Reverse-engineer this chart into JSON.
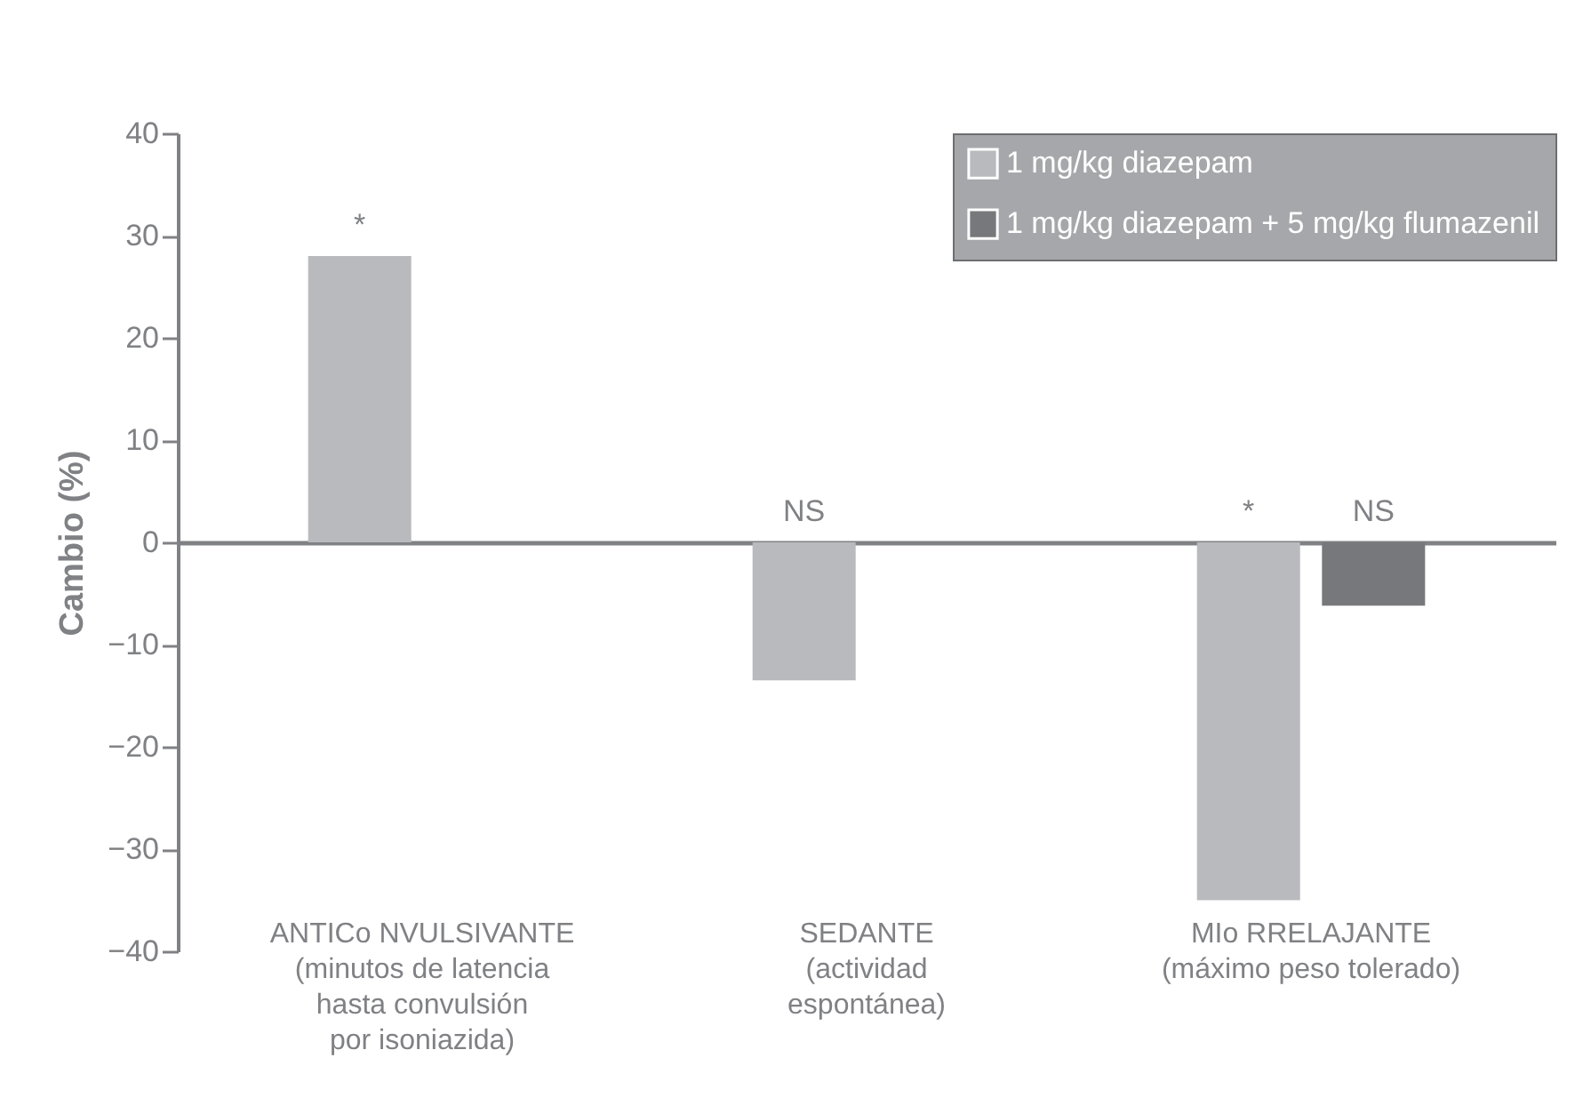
{
  "chart_data": {
    "type": "bar",
    "ylabel": "Cambio (%)",
    "categories": [
      "ANTICo NVULSIVANTE\n(minutos de latencia\nhasta convulsión\npor isoniazida)",
      "SEDANTE\n(actividad\nespontánea)",
      "MIo RRELAJANTE\n(máximo peso tolerado)"
    ],
    "series": [
      {
        "name": "1 mg/kg diazepam",
        "color": "#b9babd",
        "values": [
          28,
          -13.5,
          -35
        ]
      },
      {
        "name": "1 mg/kg diazepam + 5 mg/kg flumazenil",
        "color": "#77787b",
        "values": [
          null,
          null,
          -6.2
        ]
      }
    ],
    "ylim": [
      -40,
      40
    ],
    "yticks": [
      -40,
      -30,
      -20,
      -10,
      0,
      10,
      20,
      30,
      40
    ],
    "annotations": [
      "*",
      "NS",
      "*",
      "NS"
    ],
    "legend": "top right"
  }
}
